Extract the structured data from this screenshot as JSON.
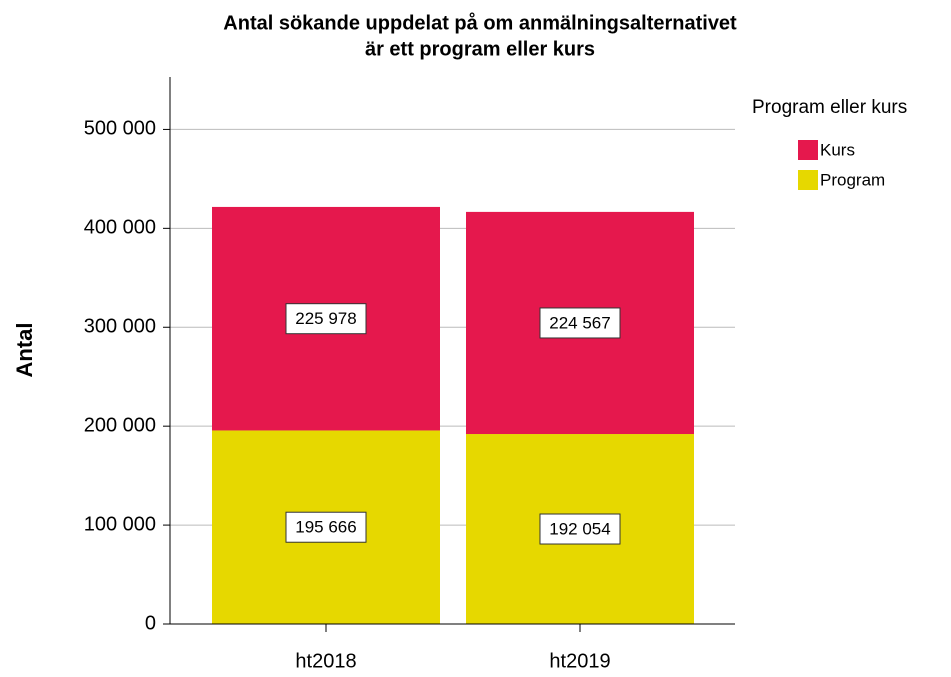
{
  "chart_data": {
    "type": "stacked_bar",
    "title": [
      "Antal sökande uppdelat på om anmälningsalternativet",
      "är ett program eller kurs"
    ],
    "y_label": "Antal",
    "legend_title": "Program eller kurs",
    "categories": [
      "ht2018",
      "ht2019"
    ],
    "series": [
      {
        "name": "Program",
        "color": "#e6d800",
        "values": [
          195666,
          192054
        ],
        "value_labels": [
          "195 666",
          "192 054"
        ]
      },
      {
        "name": "Kurs",
        "color": "#e5184d",
        "values": [
          225978,
          224567
        ],
        "value_labels": [
          "225 978",
          "224 567"
        ]
      }
    ],
    "ylim": [
      0,
      553000
    ],
    "yticks": [
      0,
      {
        "value": 100000,
        "label": "100 000"
      },
      {
        "value": 200000,
        "label": "200 000"
      },
      {
        "value": 300000,
        "label": "300 000"
      },
      {
        "value": 400000,
        "label": "400 000"
      },
      {
        "value": 500000,
        "label": "500 000"
      }
    ],
    "grid": true,
    "legend_position": "upper right"
  }
}
